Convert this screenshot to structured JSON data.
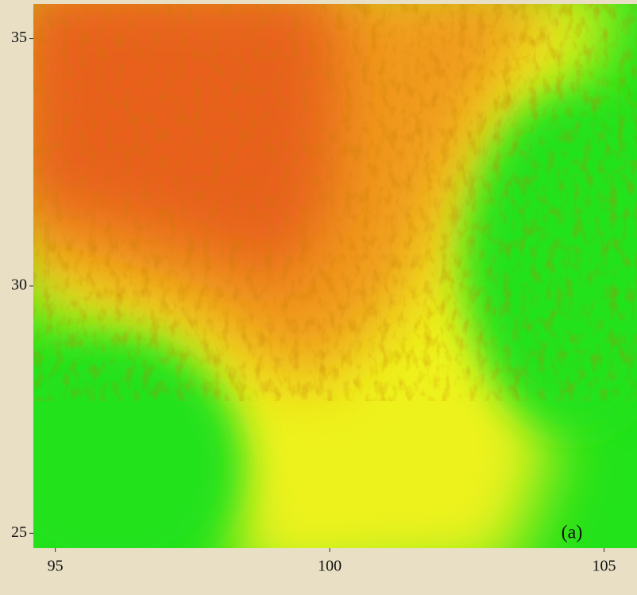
{
  "chart_data": {
    "type": "heatmap",
    "annotation": "(a)",
    "xlim": [
      94.6,
      105.6
    ],
    "xticks": [
      95,
      100,
      105
    ],
    "ylim": [
      24.7,
      35.7
    ],
    "yticks": [
      25,
      30,
      35
    ]
  }
}
